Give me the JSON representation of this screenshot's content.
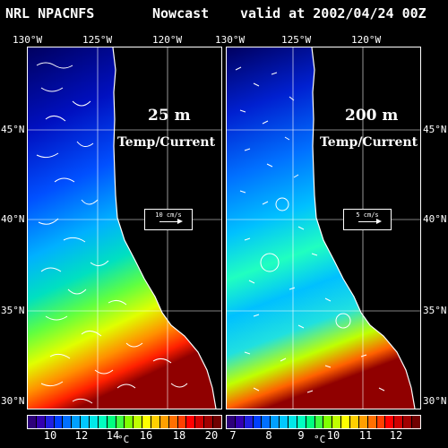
{
  "header": {
    "model": "NRL NPACNFS",
    "product": "Nowcast",
    "valid": "valid at 2002/04/24 00Z"
  },
  "axes": {
    "lon_labels": [
      "130°W",
      "125°W",
      "120°W"
    ],
    "lat_labels": [
      "45°N",
      "40°N",
      "35°N",
      "30°N"
    ]
  },
  "panels": [
    {
      "depth": "25 m",
      "variable": "Temp/Current",
      "reference_vector": "10 cm/s",
      "colorbar": {
        "ticks": [
          "10",
          "12",
          "14",
          "16",
          "18",
          "20"
        ],
        "unit": "°C",
        "colors": [
          "#2d007a",
          "#3300b0",
          "#2020e0",
          "#0040ff",
          "#0070ff",
          "#00a0ff",
          "#00c8ff",
          "#00e8e8",
          "#00ffc0",
          "#00ff80",
          "#40ff40",
          "#80ff00",
          "#c0ff00",
          "#ffff00",
          "#ffd000",
          "#ffa000",
          "#ff7000",
          "#ff4000",
          "#ff0000",
          "#d00000",
          "#a00000",
          "#700000"
        ]
      }
    },
    {
      "depth": "200 m",
      "variable": "Temp/Current",
      "reference_vector": "5 cm/s",
      "colorbar": {
        "ticks": [
          "7",
          "8",
          "9",
          "10",
          "11",
          "12"
        ],
        "unit": "°C",
        "colors": [
          "#2d007a",
          "#3300b0",
          "#2020e0",
          "#0040ff",
          "#0070ff",
          "#00a0ff",
          "#00c8ff",
          "#00e8e8",
          "#00ffc0",
          "#00ff80",
          "#40ff40",
          "#80ff00",
          "#c0ff00",
          "#ffff00",
          "#ffd000",
          "#ffa000",
          "#ff7000",
          "#ff4000",
          "#ff0000",
          "#d00000",
          "#a00000",
          "#700000"
        ]
      }
    }
  ]
}
